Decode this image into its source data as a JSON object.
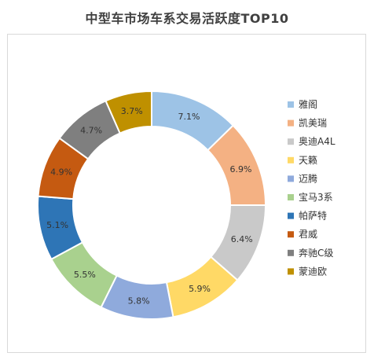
{
  "chart_data": {
    "type": "pie",
    "donut": true,
    "title": "中型车市场车系交易活跃度TOP10",
    "categories": [
      "雅阁",
      "凯美瑞",
      "奥迪A4L",
      "天籁",
      "迈腾",
      "宝马3系",
      "帕萨特",
      "君威",
      "奔驰C级",
      "蒙迪欧"
    ],
    "values": [
      7.1,
      6.9,
      6.4,
      5.9,
      5.8,
      5.5,
      5.1,
      4.9,
      4.7,
      3.7
    ],
    "labels": [
      "7.1%",
      "6.9%",
      "6.4%",
      "5.9%",
      "5.8%",
      "5.5%",
      "5.1%",
      "4.9%",
      "4.7%",
      "3.7%"
    ],
    "colors": [
      "#9DC3E6",
      "#F4B183",
      "#C9C9C9",
      "#FFD966",
      "#8FAADC",
      "#A9D18E",
      "#2E75B6",
      "#C55A11",
      "#7F7F7F",
      "#BF9000"
    ],
    "legend_position": "right"
  }
}
